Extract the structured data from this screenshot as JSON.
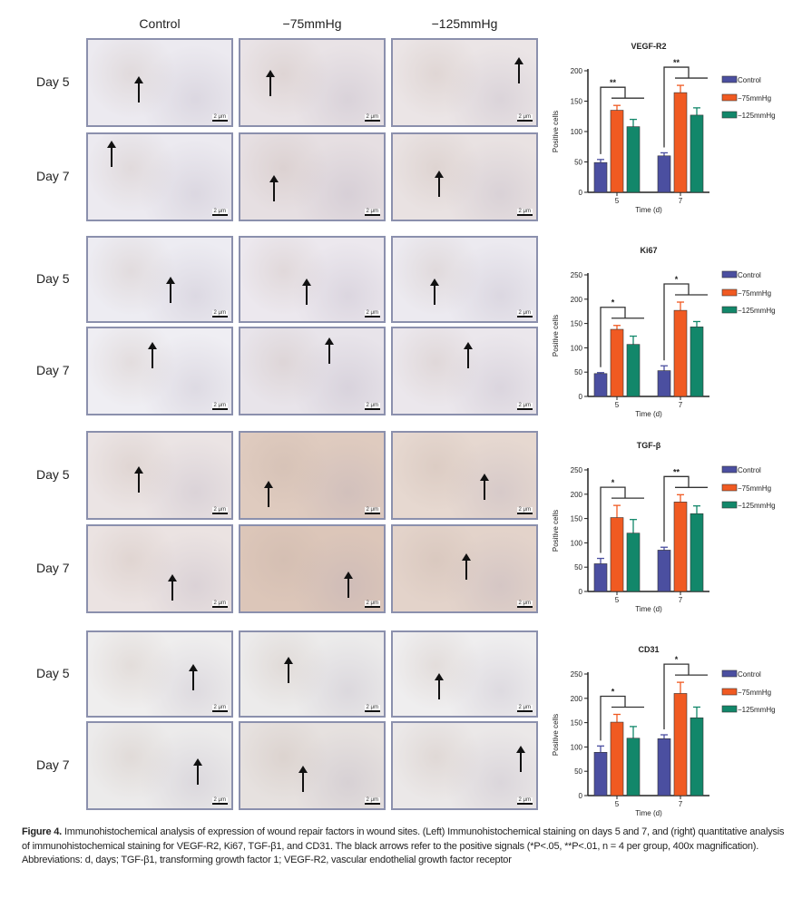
{
  "columns": [
    "Control",
    "−75mmHg",
    "−125mmHg"
  ],
  "day_labels": [
    "Day 5",
    "Day 7"
  ],
  "scale_bar": "2 μm",
  "colors": {
    "Control": "#4b4fa0",
    "-75mmHg": "#f05a22",
    "-125mmHg": "#12876a",
    "panel_border": "#8b90ad"
  },
  "chart_data": [
    {
      "type": "bar",
      "title": "VEGF-R2",
      "xlabel": "Time (d)",
      "ylabel": "Positive cells",
      "categories": [
        "5",
        "7"
      ],
      "ylim": [
        0,
        200
      ],
      "yticks": [
        0,
        50,
        100,
        150,
        200
      ],
      "legend": "right",
      "series": [
        {
          "name": "Control",
          "values": [
            49,
            60
          ],
          "errors": [
            5,
            5
          ]
        },
        {
          "name": "−75mmHg",
          "values": [
            135,
            164
          ],
          "errors": [
            8,
            12
          ]
        },
        {
          "name": "−125mmHg",
          "values": [
            108,
            127
          ],
          "errors": [
            12,
            12
          ]
        }
      ],
      "significance": [
        "**",
        "**"
      ]
    },
    {
      "type": "bar",
      "title": "Ki67",
      "xlabel": "Time (d)",
      "ylabel": "Positive cells",
      "categories": [
        "5",
        "7"
      ],
      "ylim": [
        0,
        250
      ],
      "yticks": [
        0,
        50,
        100,
        150,
        200,
        250
      ],
      "legend": "right",
      "series": [
        {
          "name": "Control",
          "values": [
            47,
            53
          ],
          "errors": [
            2,
            10
          ]
        },
        {
          "name": "−75mmHg",
          "values": [
            138,
            177
          ],
          "errors": [
            8,
            17
          ]
        },
        {
          "name": "−125mmHg",
          "values": [
            107,
            143
          ],
          "errors": [
            17,
            11
          ]
        }
      ],
      "significance": [
        "*",
        "*"
      ]
    },
    {
      "type": "bar",
      "title": "TGF-β",
      "xlabel": "Time (d)",
      "ylabel": "Positive cells",
      "categories": [
        "5",
        "7"
      ],
      "ylim": [
        0,
        250
      ],
      "yticks": [
        0,
        50,
        100,
        150,
        200,
        250
      ],
      "legend": "right",
      "series": [
        {
          "name": "Control",
          "values": [
            57,
            85
          ],
          "errors": [
            11,
            6
          ]
        },
        {
          "name": "−75mmHg",
          "values": [
            152,
            184
          ],
          "errors": [
            25,
            15
          ]
        },
        {
          "name": "−125mmHg",
          "values": [
            120,
            160
          ],
          "errors": [
            28,
            16
          ]
        }
      ],
      "significance": [
        "*",
        "**"
      ]
    },
    {
      "type": "bar",
      "title": "CD31",
      "xlabel": "Time (d)",
      "ylabel": "Positive cells",
      "categories": [
        "5",
        "7"
      ],
      "ylim": [
        0,
        250
      ],
      "yticks": [
        0,
        50,
        100,
        150,
        200,
        250
      ],
      "legend": "right",
      "series": [
        {
          "name": "Control",
          "values": [
            89,
            117
          ],
          "errors": [
            13,
            8
          ]
        },
        {
          "name": "−75mmHg",
          "values": [
            151,
            210
          ],
          "errors": [
            16,
            23
          ]
        },
        {
          "name": "−125mmHg",
          "values": [
            118,
            160
          ],
          "errors": [
            24,
            22
          ]
        }
      ],
      "significance": [
        "*",
        "*"
      ]
    }
  ],
  "caption": {
    "label": "Figure 4.",
    "text": " Immunohistochemical analysis of expression of wound repair factors in wound sites. (Left) Immunohistochemical staining on days 5 and 7, and (right) quantitative analysis of immunohistochemical staining for VEGF-R2, Ki67, TGF-β1, and CD31. The black arrows refer to the positive signals (*P<.05, **P<.01, n = 4 per group, 400x magnification).",
    "abbreviations": "Abbreviations: d, days; TGF-β1, transforming growth factor    1; VEGF-R2, vascular endothelial growth factor receptor"
  }
}
